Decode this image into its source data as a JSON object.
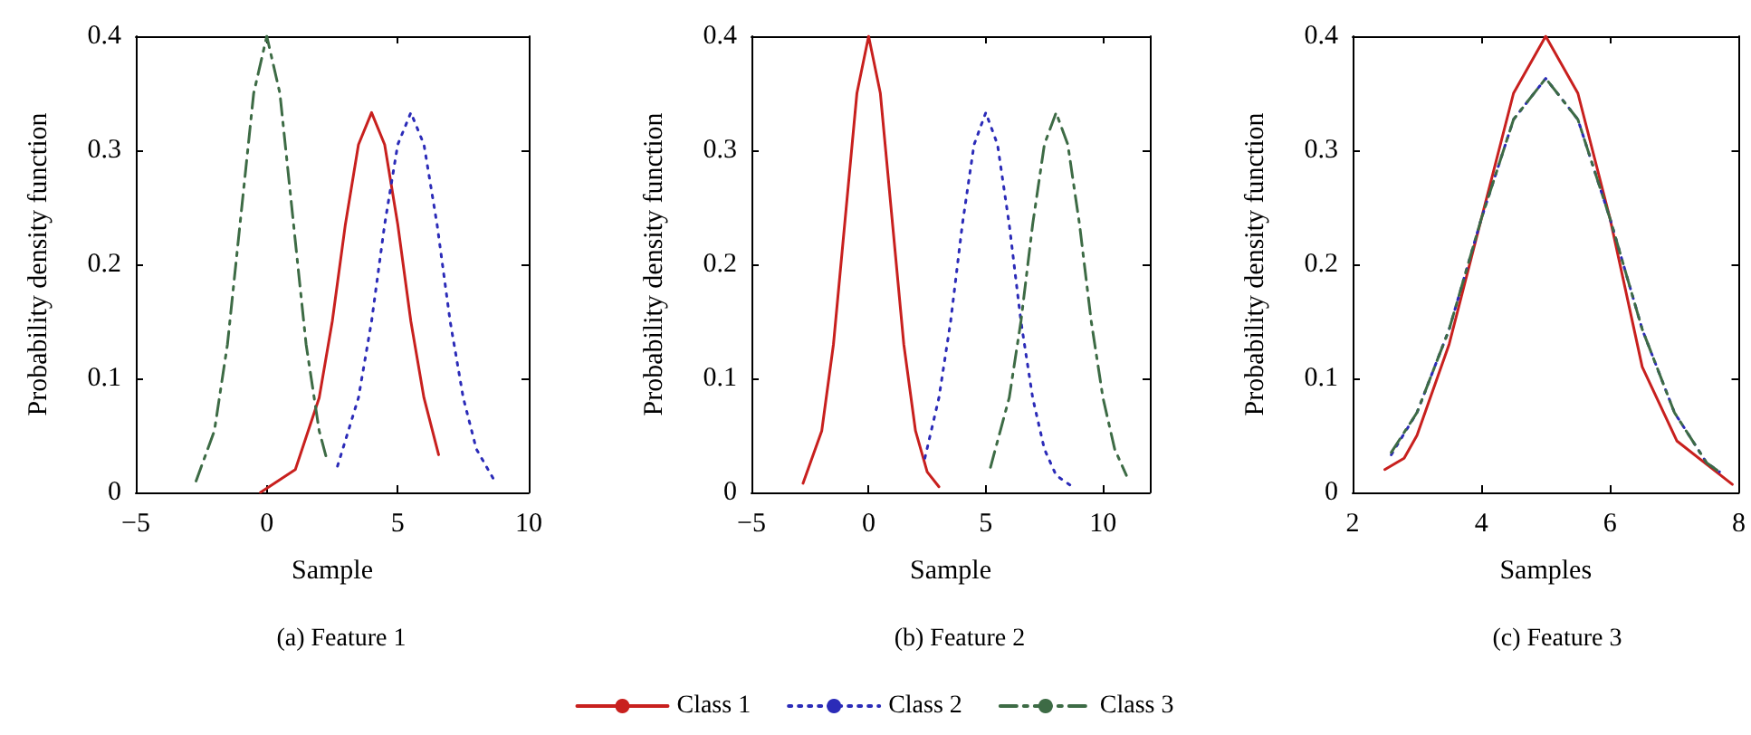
{
  "chart_data": [
    {
      "type": "line",
      "title": "(a) Feature 1",
      "xlabel": "Sample",
      "ylabel": "Probability density function",
      "xlim": [
        -5,
        10
      ],
      "xticks": [
        -5,
        0,
        5,
        10
      ],
      "ylim": [
        0,
        0.4
      ],
      "yticks": [
        0,
        0.1,
        0.2,
        0.3,
        0.4
      ],
      "grid": false,
      "legend": false,
      "marker": "none",
      "series": [
        {
          "color": "#c8201e",
          "line_style": "solid",
          "x": [
            -0.24,
            1.09,
            2,
            2.5,
            3,
            3.5,
            4,
            4.5,
            5,
            5.5,
            6,
            6.56
          ],
          "values": [
            0,
            0.02,
            0.083,
            0.15,
            0.235,
            0.305,
            0.333,
            0.305,
            0.235,
            0.15,
            0.083,
            0.033
          ]
        },
        {
          "color": "#2b2bb8",
          "line_style": "dotted",
          "x": [
            2.7,
            3.5,
            4,
            4.5,
            5,
            5.5,
            6,
            6.5,
            7,
            7.5,
            8,
            8.7
          ],
          "values": [
            0.023,
            0.083,
            0.15,
            0.235,
            0.305,
            0.333,
            0.305,
            0.235,
            0.15,
            0.083,
            0.038,
            0.01
          ]
        },
        {
          "color": "#3d6b45",
          "line_style": "dashed",
          "x": [
            -2.7,
            -2,
            -1.5,
            -1,
            -0.5,
            0,
            0.5,
            1,
            1.5,
            2,
            2.28
          ],
          "values": [
            0.01,
            0.054,
            0.13,
            0.24,
            0.35,
            0.4,
            0.35,
            0.24,
            0.13,
            0.054,
            0.03
          ]
        }
      ]
    },
    {
      "type": "line",
      "title": "(b) Feature 2",
      "xlabel": "Sample",
      "ylabel": "Probability density function",
      "xlim": [
        -5,
        12
      ],
      "xticks": [
        -5,
        0,
        5,
        10
      ],
      "ylim": [
        0,
        0.4
      ],
      "yticks": [
        0,
        0.1,
        0.2,
        0.3,
        0.4
      ],
      "grid": false,
      "legend": "bottom",
      "marker": "none",
      "series": [
        {
          "name": "Class 1",
          "color": "#c8201e",
          "line_style": "solid",
          "x": [
            -2.8,
            -2,
            -1.5,
            -1,
            -0.5,
            0,
            0.5,
            1,
            1.5,
            2,
            2.5,
            3
          ],
          "values": [
            0.008,
            0.054,
            0.13,
            0.24,
            0.35,
            0.4,
            0.35,
            0.24,
            0.13,
            0.054,
            0.018,
            0.005
          ]
        },
        {
          "name": "Class 2",
          "color": "#2b2bb8",
          "line_style": "dotted",
          "x": [
            2.4,
            3,
            3.5,
            4,
            4.5,
            5,
            5.5,
            6,
            6.5,
            7,
            7.5,
            8,
            8.7
          ],
          "values": [
            0.03,
            0.083,
            0.15,
            0.235,
            0.305,
            0.333,
            0.305,
            0.235,
            0.15,
            0.083,
            0.038,
            0.015,
            0.005
          ]
        },
        {
          "name": "Class 3",
          "color": "#3d6b45",
          "line_style": "dashed",
          "x": [
            5.2,
            6,
            6.5,
            7,
            7.5,
            8,
            8.5,
            9,
            9.5,
            10,
            10.5,
            11
          ],
          "values": [
            0.022,
            0.083,
            0.15,
            0.235,
            0.305,
            0.333,
            0.305,
            0.235,
            0.15,
            0.083,
            0.038,
            0.015
          ]
        }
      ]
    },
    {
      "type": "line",
      "title": "(c) Feature 3",
      "xlabel": "Samples",
      "ylabel": "Probability density function",
      "xlim": [
        2,
        8
      ],
      "xticks": [
        2,
        4,
        6,
        8
      ],
      "ylim": [
        0,
        0.4
      ],
      "yticks": [
        0,
        0.1,
        0.2,
        0.3,
        0.4
      ],
      "grid": false,
      "legend": false,
      "marker": "none",
      "series": [
        {
          "color": "#c8201e",
          "line_style": "solid",
          "x": [
            2.5,
            2.8,
            3,
            3.5,
            4,
            4.5,
            5,
            5.5,
            6,
            6.5,
            7.04,
            7.9
          ],
          "values": [
            0.02,
            0.03,
            0.05,
            0.13,
            0.24,
            0.35,
            0.4,
            0.35,
            0.24,
            0.11,
            0.045,
            0.007
          ]
        },
        {
          "color": "#2b2bb8",
          "line_style": "dotted",
          "x": [
            2.6,
            3,
            3.5,
            4,
            4.5,
            5,
            5.5,
            6,
            6.5,
            7,
            7.5,
            7.7
          ],
          "values": [
            0.033,
            0.07,
            0.143,
            0.24,
            0.327,
            0.363,
            0.327,
            0.24,
            0.143,
            0.07,
            0.026,
            0.018
          ]
        },
        {
          "color": "#3d6b45",
          "line_style": "dashed",
          "x": [
            2.6,
            3,
            3.5,
            4,
            4.5,
            5,
            5.5,
            6,
            6.5,
            7,
            7.5,
            7.7
          ],
          "values": [
            0.035,
            0.07,
            0.143,
            0.24,
            0.327,
            0.363,
            0.327,
            0.24,
            0.143,
            0.07,
            0.026,
            0.018
          ]
        }
      ]
    }
  ]
}
